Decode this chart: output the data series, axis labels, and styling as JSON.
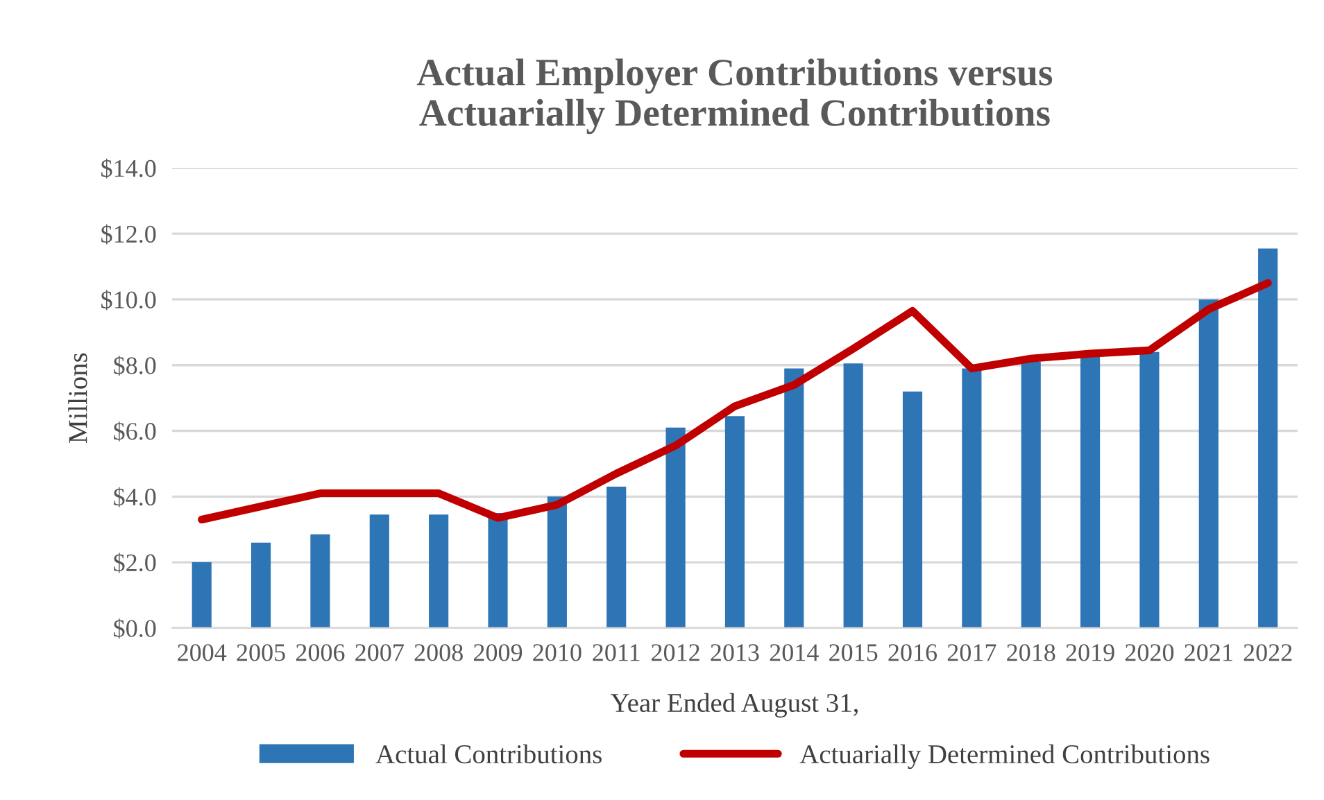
{
  "chart_data": {
    "type": "bar",
    "title": "Actual Employer Contributions versus\nActuarially Determined Contributions",
    "xlabel": "Year Ended August 31,",
    "ylabel": "Millions",
    "categories": [
      "2004",
      "2005",
      "2006",
      "2007",
      "2008",
      "2009",
      "2010",
      "2011",
      "2012",
      "2013",
      "2014",
      "2015",
      "2016",
      "2017",
      "2018",
      "2019",
      "2020",
      "2021",
      "2022"
    ],
    "series": [
      {
        "name": "Actual Contributions",
        "color": "#2e75b6",
        "values": [
          2.0,
          2.6,
          2.85,
          3.45,
          3.45,
          3.5,
          4.0,
          4.3,
          6.1,
          6.45,
          7.9,
          8.05,
          7.2,
          7.9,
          8.1,
          8.3,
          8.4,
          10.0,
          11.55
        ]
      },
      {
        "name": "Actuarially Determined Contributions",
        "type": "line",
        "color": "#c00000",
        "values": [
          3.3,
          3.7,
          4.1,
          4.1,
          4.1,
          3.35,
          3.75,
          4.7,
          5.55,
          6.75,
          7.4,
          8.5,
          9.65,
          7.9,
          8.2,
          8.35,
          8.45,
          9.7,
          10.5
        ]
      }
    ],
    "ylim": [
      0,
      14
    ],
    "yticks": [
      {
        "value": 0,
        "label": "$0.0"
      },
      {
        "value": 2,
        "label": "$2.0"
      },
      {
        "value": 4,
        "label": "$4.0"
      },
      {
        "value": 6,
        "label": "$6.0"
      },
      {
        "value": 8,
        "label": "$8.0"
      },
      {
        "value": 10,
        "label": "$10.0"
      },
      {
        "value": 12,
        "label": "$12.0"
      },
      {
        "value": 14,
        "label": "$14.0"
      }
    ],
    "grid": "y",
    "legend": "bottom",
    "marker": "none",
    "line_style": "solid"
  }
}
